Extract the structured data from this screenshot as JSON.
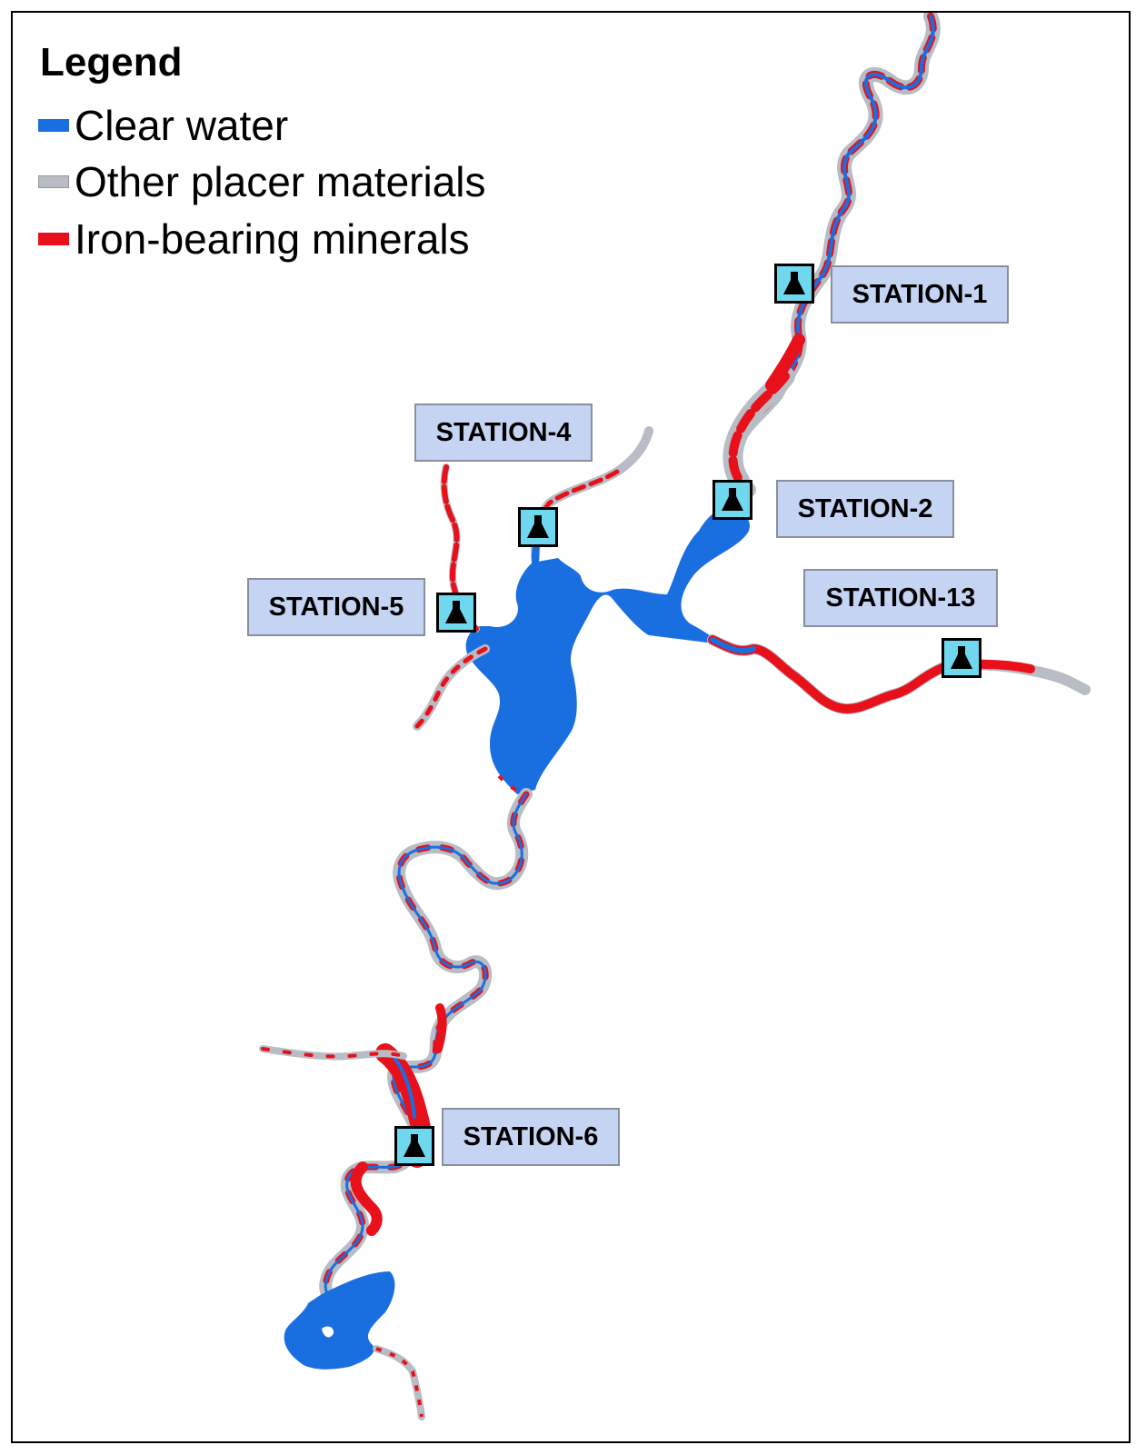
{
  "legend": {
    "title": "Legend",
    "items": [
      {
        "label": "Clear water",
        "color": "#1a6fe0"
      },
      {
        "label": "Other placer materials",
        "color": "#b8bcc4"
      },
      {
        "label": "Iron-bearing minerals",
        "color": "#e8101a"
      }
    ]
  },
  "stations": [
    {
      "id": "s1",
      "label": "STATION-1"
    },
    {
      "id": "s2",
      "label": "STATION-2"
    },
    {
      "id": "s4",
      "label": "STATION-4"
    },
    {
      "id": "s5",
      "label": "STATION-5"
    },
    {
      "id": "s13",
      "label": "STATION-13"
    },
    {
      "id": "s6",
      "label": "STATION-6"
    }
  ],
  "colors": {
    "water": "#1a6fe0",
    "placer": "#b8bcc4",
    "iron": "#e8101a",
    "label_bg": "#c6d4f4",
    "marker_bg": "#6fd8ee"
  },
  "icons": {
    "station_marker": "flask-icon"
  }
}
